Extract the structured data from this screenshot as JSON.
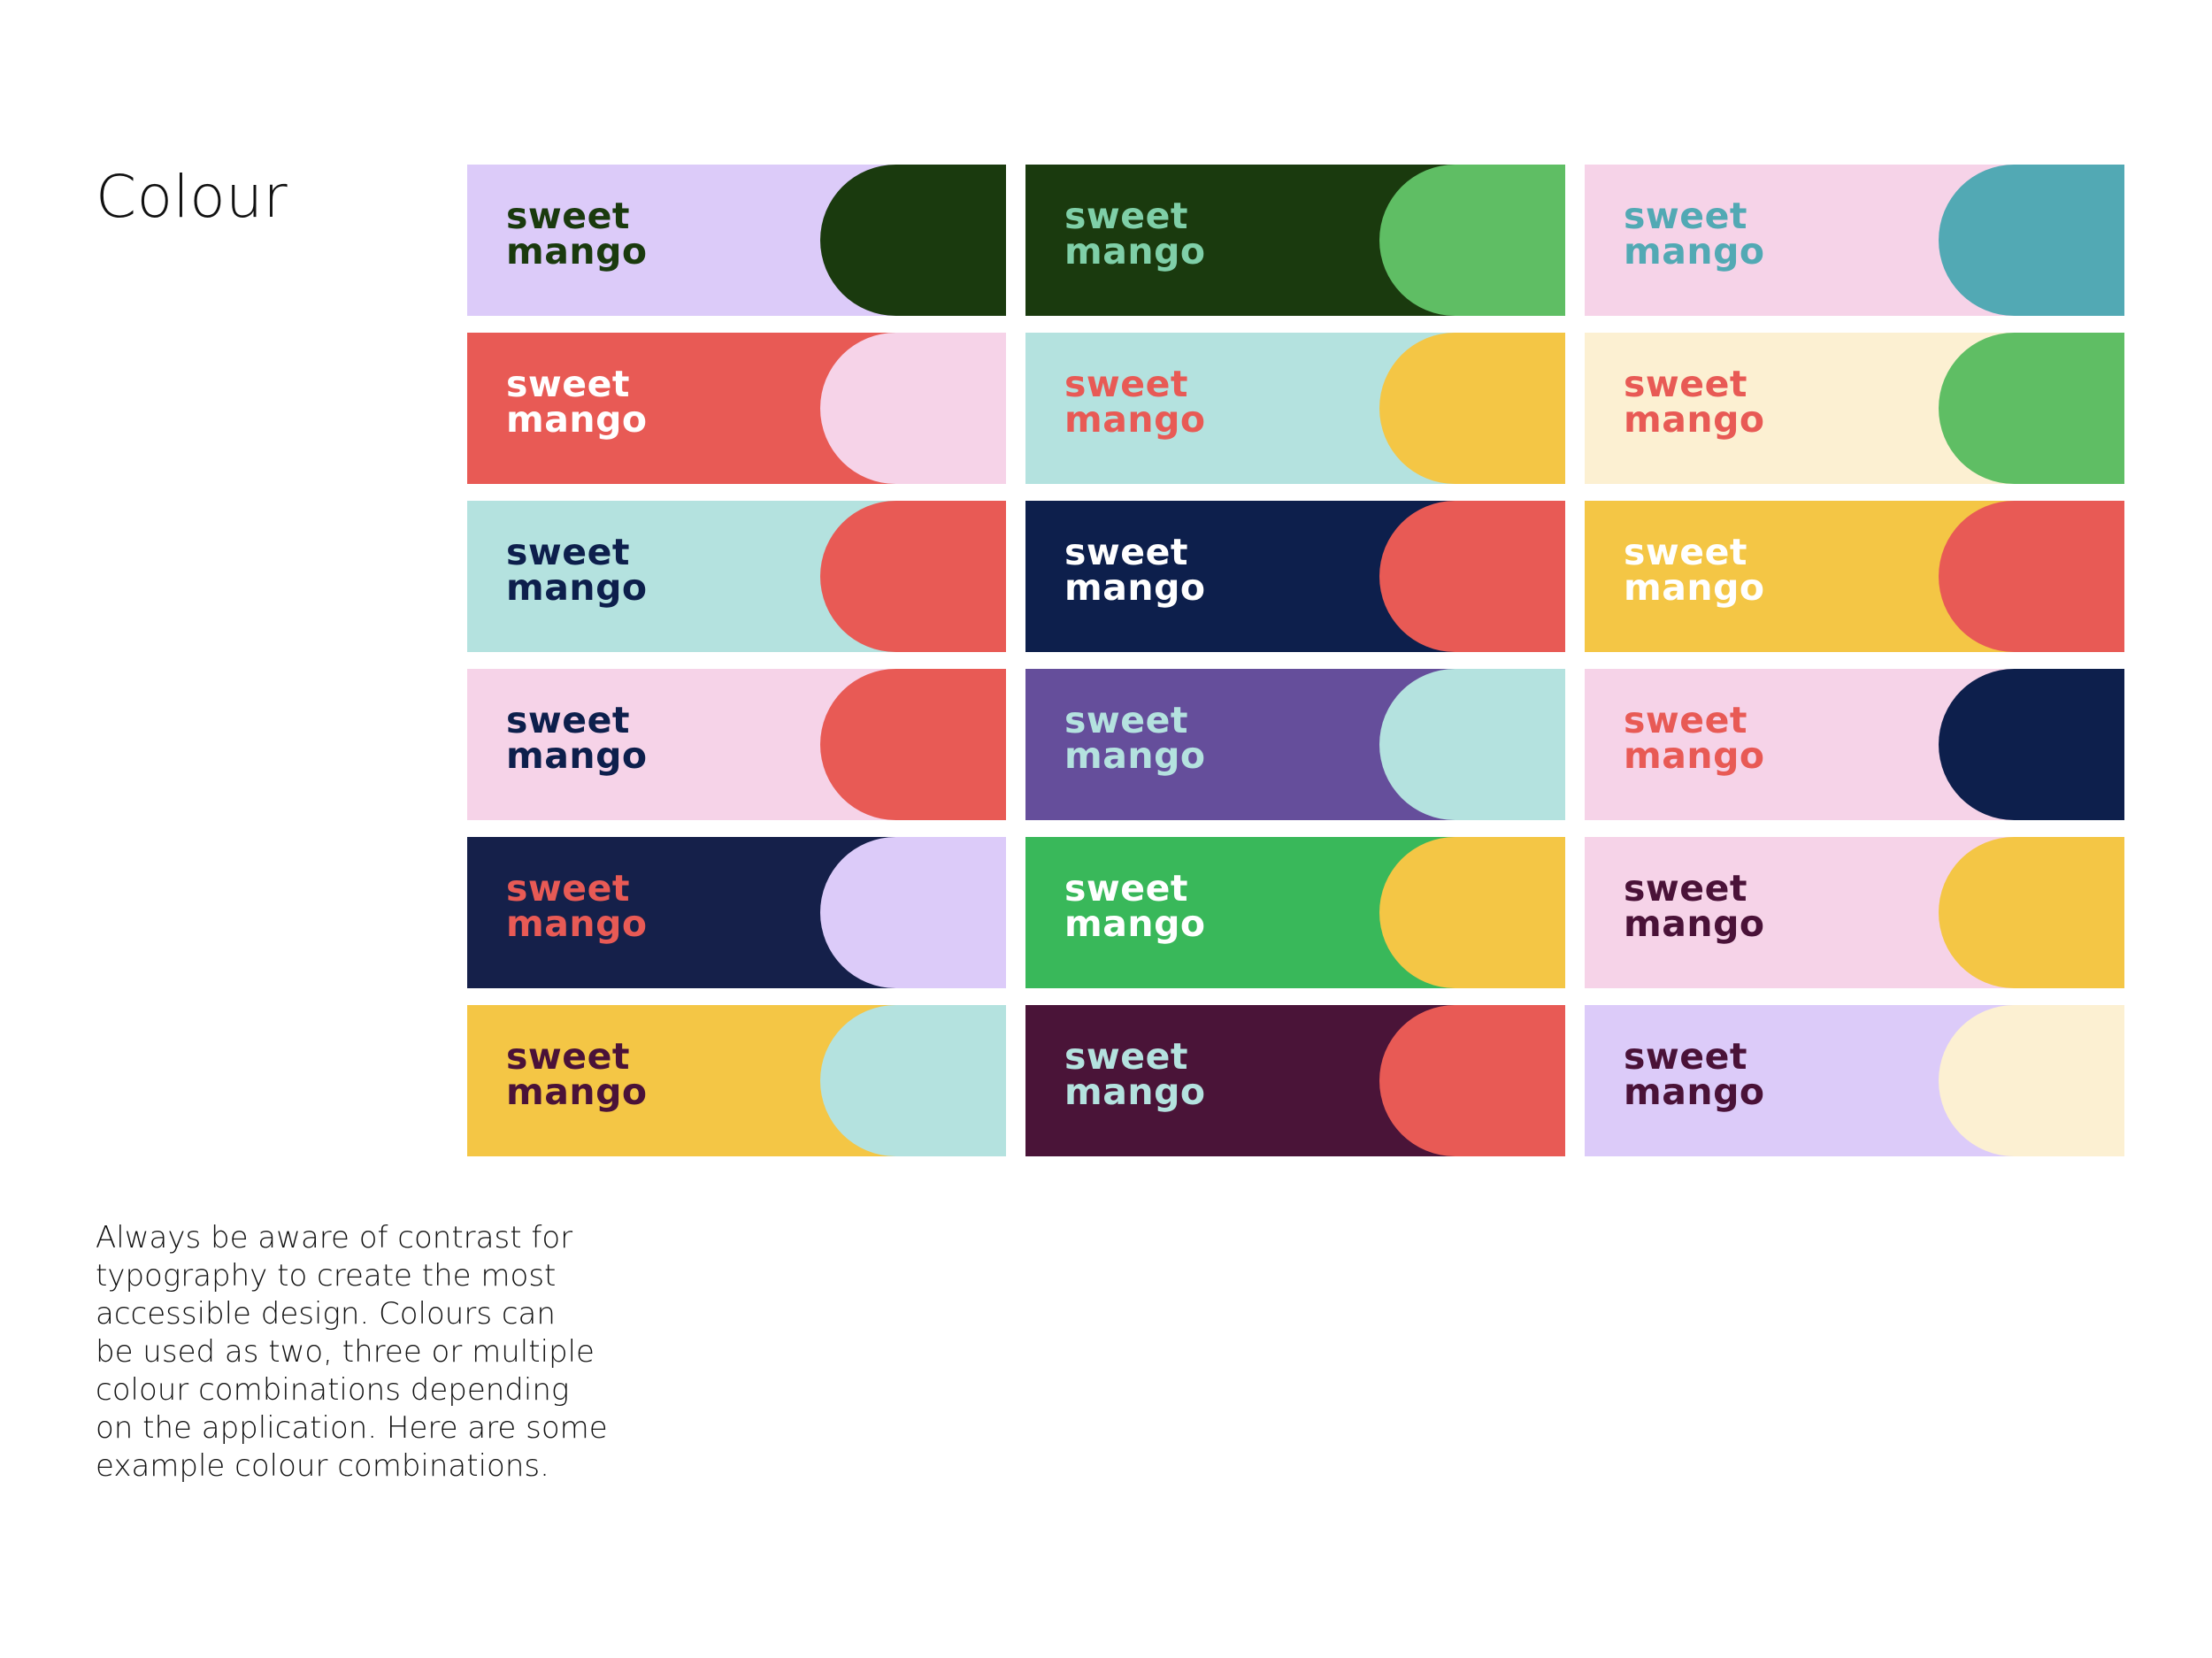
{
  "heading": "Colour",
  "body_lines": [
    "Always be aware of contrast for",
    "typography to create the most",
    "accessible design. Colours can",
    "be used as two, three or multiple",
    "colour combinations depending",
    "on the application. Here are some",
    "example colour combinations."
  ],
  "logo": {
    "line1": "sweet",
    "line2": "mango"
  },
  "swatches": [
    {
      "bg": "#DCCBF9",
      "blob": "#1A3A0E",
      "text": "#1A3A0E"
    },
    {
      "bg": "#1A3A0E",
      "blob": "#5FBE64",
      "text": "#7FCFA8"
    },
    {
      "bg": "#F6D3E8",
      "blob": "#52A9B4",
      "text": "#52A9B4"
    },
    {
      "bg": "#E85A55",
      "blob": "#F6D3E8",
      "text": "#FFFFFF"
    },
    {
      "bg": "#B4E2DF",
      "blob": "#F4C645",
      "text": "#E85A55"
    },
    {
      "bg": "#FCF0D2",
      "blob": "#5FBE64",
      "text": "#E85A55"
    },
    {
      "bg": "#B4E2DF",
      "blob": "#E85A55",
      "text": "#0D1F4C"
    },
    {
      "bg": "#0D1F4C",
      "blob": "#E85A55",
      "text": "#FFFFFF"
    },
    {
      "bg": "#F4C645",
      "blob": "#E85A55",
      "text": "#FFFFFF"
    },
    {
      "bg": "#F6D3E8",
      "blob": "#E85A55",
      "text": "#0D1F4C"
    },
    {
      "bg": "#654E9B",
      "blob": "#B4E2DF",
      "text": "#B4E2DF"
    },
    {
      "bg": "#F6D3E8",
      "blob": "#0D1F4C",
      "text": "#E85A55"
    },
    {
      "bg": "#15204A",
      "blob": "#DCCBF9",
      "text": "#E85A55"
    },
    {
      "bg": "#39B85A",
      "blob": "#F4C645",
      "text": "#FFFFFF"
    },
    {
      "bg": "#F6D3E8",
      "blob": "#F4C645",
      "text": "#4A1238"
    },
    {
      "bg": "#F4C645",
      "blob": "#B4E2DF",
      "text": "#4A1238"
    },
    {
      "bg": "#4A1438",
      "blob": "#E85A55",
      "text": "#B4E2DF"
    },
    {
      "bg": "#DCCBF9",
      "blob": "#FCF0D2",
      "text": "#4A1238"
    }
  ]
}
